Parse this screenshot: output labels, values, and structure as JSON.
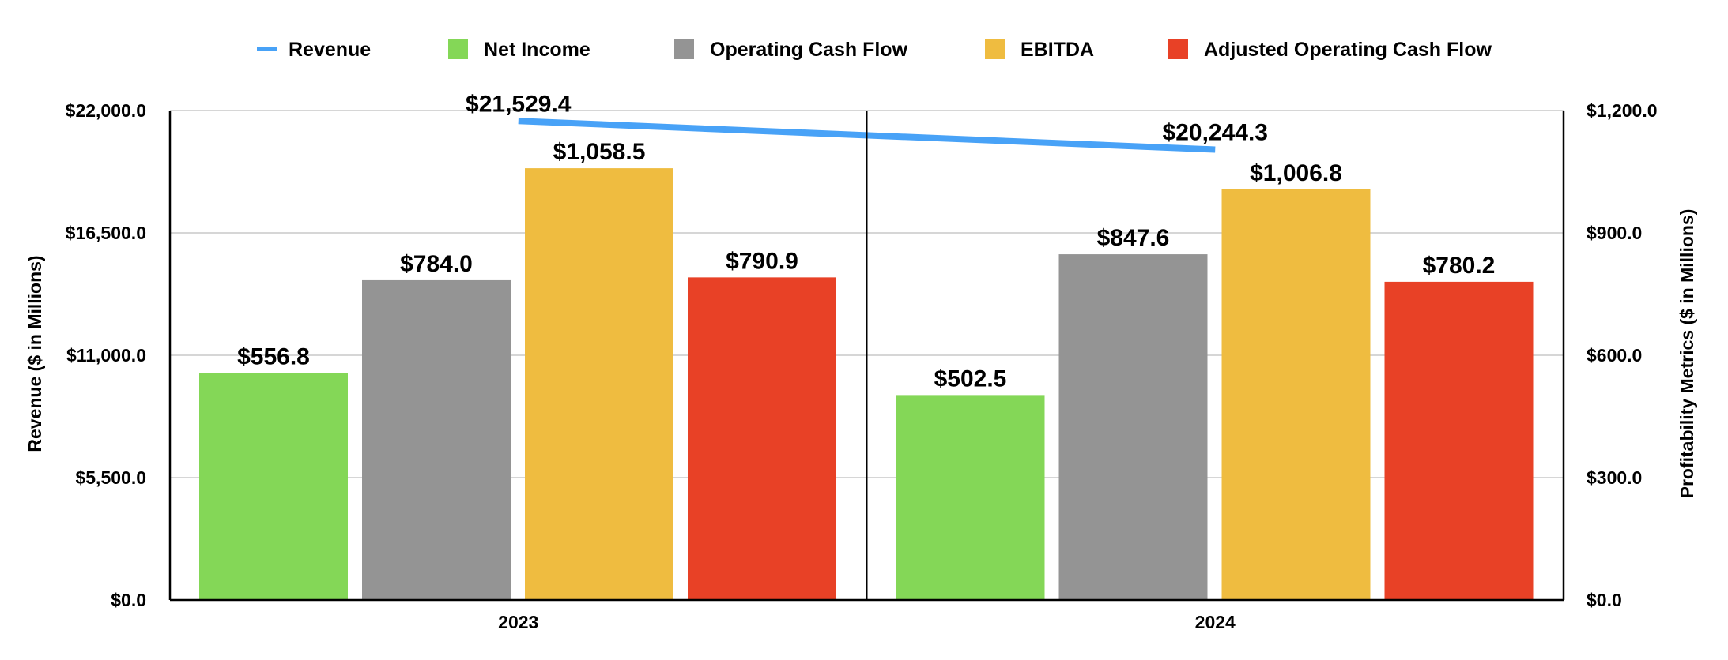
{
  "chart_data": {
    "type": "bar",
    "categories": [
      "2023",
      "2024"
    ],
    "series": [
      {
        "name": "Net Income",
        "axis": "right",
        "color": "#84d757",
        "values": [
          556.8,
          502.5
        ],
        "labels": [
          "$556.8",
          "$502.5"
        ]
      },
      {
        "name": "Operating Cash Flow",
        "axis": "right",
        "color": "#949494",
        "values": [
          784.0,
          847.6
        ],
        "labels": [
          "$784.0",
          "$847.6"
        ]
      },
      {
        "name": "EBITDA",
        "axis": "right",
        "color": "#efbc40",
        "values": [
          1058.5,
          1006.8
        ],
        "labels": [
          "$1,058.5",
          "$1,006.8"
        ]
      },
      {
        "name": "Adjusted Operating Cash Flow",
        "axis": "right",
        "color": "#e84126",
        "values": [
          790.9,
          780.2
        ],
        "labels": [
          "$790.9",
          "$780.2"
        ]
      }
    ],
    "line_series": {
      "name": "Revenue",
      "axis": "left",
      "type": "line",
      "color": "#48a2f7",
      "values": [
        21529.4,
        20244.3
      ],
      "labels": [
        "$21,529.4",
        "$20,244.3"
      ]
    },
    "legend_order": [
      "Revenue",
      "Net Income",
      "Operating Cash Flow",
      "EBITDA",
      "Adjusted Operating Cash Flow"
    ],
    "legend_position": "top",
    "ylabel": "Revenue ($ in Millions)",
    "y2label": "Profitability Metrics ($ in Millions)",
    "ylim": [
      0,
      22000
    ],
    "y2lim": [
      0,
      1200
    ],
    "yticks": [
      "$0.0",
      "$5,500.0",
      "$11,000.0",
      "$16,500.0",
      "$22,000.0"
    ],
    "y2ticks": [
      "$0.0",
      "$300.0",
      "$600.0",
      "$900.0",
      "$1,200.0"
    ],
    "grid": true
  }
}
